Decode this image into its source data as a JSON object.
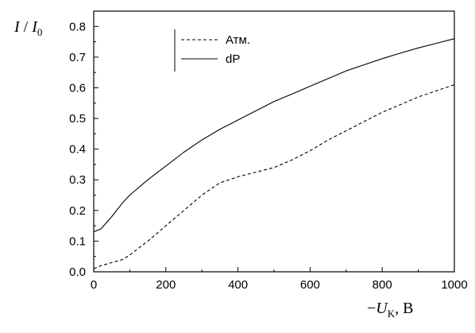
{
  "chart_data": {
    "type": "line",
    "title": "",
    "ylabel": {
      "italic_I": "I",
      "slash": "/",
      "italic_I0": "I",
      "sub0": "0"
    },
    "xlabel": {
      "minus": "−",
      "italic_U": "U",
      "sub_k": "K",
      "unit": ", B"
    },
    "xlim": [
      0,
      1000
    ],
    "ylim": [
      0,
      0.85
    ],
    "xticks": [
      0,
      200,
      400,
      600,
      800,
      1000
    ],
    "xtick_labels": [
      "0",
      "200",
      "400",
      "600",
      "800",
      "1000"
    ],
    "yticks": [
      0.0,
      0.1,
      0.2,
      0.3,
      0.4,
      0.5,
      0.6,
      0.7,
      0.8
    ],
    "ytick_labels": [
      "0.0",
      "0.1",
      "0.2",
      "0.3",
      "0.4",
      "0.5",
      "0.6",
      "0.7",
      "0.8"
    ],
    "grid": false,
    "legend": "top-left",
    "series": [
      {
        "name": "Атм.",
        "style": "dashed",
        "x": [
          0,
          20,
          50,
          80,
          100,
          150,
          200,
          250,
          300,
          350,
          400,
          450,
          500,
          550,
          600,
          650,
          700,
          750,
          800,
          850,
          900,
          950,
          1000
        ],
        "y": [
          0.01,
          0.02,
          0.03,
          0.04,
          0.055,
          0.1,
          0.15,
          0.2,
          0.25,
          0.29,
          0.31,
          0.325,
          0.34,
          0.365,
          0.395,
          0.43,
          0.46,
          0.49,
          0.52,
          0.545,
          0.57,
          0.59,
          0.61
        ]
      },
      {
        "name": "dP",
        "style": "solid",
        "x": [
          0,
          20,
          50,
          80,
          100,
          150,
          200,
          250,
          300,
          350,
          400,
          450,
          500,
          550,
          600,
          650,
          700,
          750,
          800,
          850,
          900,
          950,
          1000
        ],
        "y": [
          0.13,
          0.14,
          0.18,
          0.225,
          0.25,
          0.3,
          0.345,
          0.39,
          0.43,
          0.465,
          0.495,
          0.525,
          0.555,
          0.58,
          0.605,
          0.63,
          0.655,
          0.675,
          0.695,
          0.713,
          0.73,
          0.745,
          0.76
        ]
      }
    ]
  }
}
